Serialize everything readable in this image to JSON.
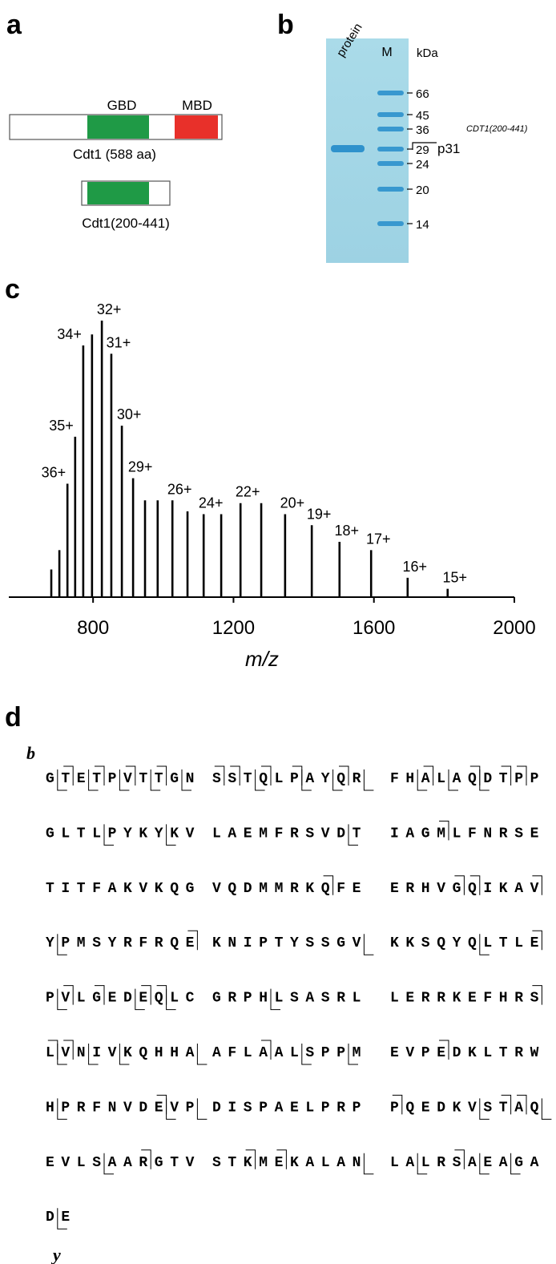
{
  "panel_labels": [
    "a",
    "b",
    "c",
    "d"
  ],
  "domains": {
    "gbd": "GBD",
    "mbd": "MBD",
    "full": "Cdt1 (588 aa)",
    "fragment": "Cdt1(200-441)"
  },
  "gel": {
    "lanes": [
      "protein",
      "M"
    ],
    "unit": "kDa",
    "markers": [
      "66",
      "45",
      "36",
      "29",
      "24",
      "20",
      "14"
    ],
    "band": "p31",
    "band_note": "CDT1(200-441)"
  },
  "chart_data": {
    "type": "bar",
    "xlabel": "m/z",
    "color": "#000000",
    "x": [
      681,
      704,
      727,
      749,
      772,
      797,
      825,
      852,
      882,
      914,
      948,
      984,
      1026,
      1069,
      1115,
      1165,
      1220,
      1279,
      1347,
      1423,
      1502,
      1592,
      1696,
      1810
    ],
    "values": [
      10,
      17,
      41,
      58,
      91,
      95,
      100,
      88,
      62,
      43,
      35,
      35,
      35,
      31,
      30,
      30,
      34,
      34,
      30,
      26,
      20,
      17,
      7,
      3
    ],
    "labels": [
      null,
      null,
      "36+",
      "35+",
      "34+",
      null,
      "32+",
      "31+",
      "30+",
      "29+",
      null,
      null,
      "26+",
      null,
      "24+",
      null,
      "22+",
      null,
      "20+",
      "19+",
      "18+",
      "17+",
      "16+",
      "15+"
    ],
    "xlim": [
      560,
      2000
    ],
    "xticks": [
      800,
      1200,
      1600,
      2000
    ],
    "ylim": [
      0,
      100
    ]
  },
  "sequence": {
    "b_label": "b",
    "y_label": "y",
    "rows": [
      [
        "GTETPVTTGN",
        "SSTQLPAYQR",
        "FHALAQDTPP"
      ],
      [
        "GLTLPYKYKV",
        "LAEMFRSVDT",
        "IAGMLFNRSE"
      ],
      [
        "TITFAKVKQG",
        "VQDMMRKQFE",
        "ERHVGQIKAV"
      ],
      [
        "YPMSYRFRQE",
        "KNIPTYSSGV",
        "KKSQYQLTLE"
      ],
      [
        "PVLGEDEQLC",
        "GRPHLSASRL",
        "LERRKEFHRS"
      ],
      [
        "LVNIVKQHHA",
        "AFLAALSPPM",
        "EVPEDKLTRW"
      ],
      [
        "HPRFNVDEVP",
        "DISPAELPRP",
        "PQEDKVSTAQ"
      ],
      [
        "EVLSAARGTV",
        "STKMEKALAN",
        "LALRSAEAGA"
      ],
      [
        "DE"
      ]
    ],
    "b_sites": [
      1,
      3,
      5,
      7,
      10,
      11,
      13,
      15,
      18,
      22,
      25,
      27,
      28,
      53,
      77,
      84,
      85,
      89,
      99,
      119,
      121,
      123,
      126,
      127,
      149,
      150,
      151,
      163,
      173,
      187,
      200,
      207,
      208,
      216,
      222,
      224,
      234
    ],
    "y_sites": [
      0,
      2,
      4,
      6,
      8,
      12,
      15,
      17,
      19,
      21,
      23,
      25,
      33,
      37,
      48,
      90,
      109,
      115,
      120,
      125,
      127,
      133,
      150,
      152,
      154,
      159,
      165,
      168,
      180,
      187,
      189,
      205,
      209,
      213,
      229,
      231,
      235,
      237,
      240
    ]
  }
}
